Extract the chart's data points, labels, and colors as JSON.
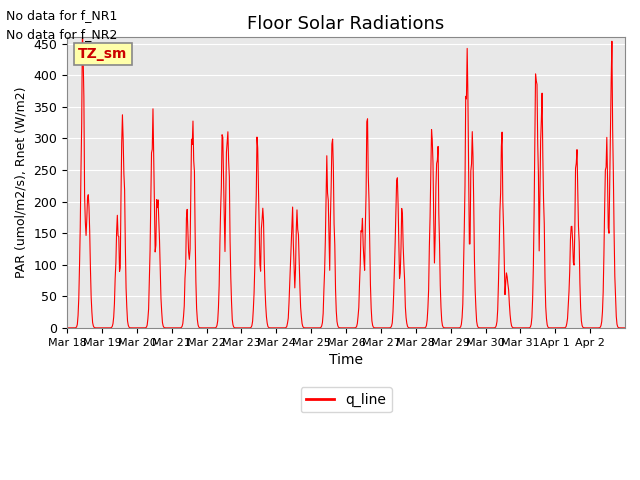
{
  "title": "Floor Solar Radiations",
  "xlabel": "Time",
  "ylabel": "PAR (umol/m2/s), Rnet (W/m2)",
  "ylim": [
    0,
    460
  ],
  "yticks": [
    0,
    50,
    100,
    150,
    200,
    250,
    300,
    350,
    400,
    450
  ],
  "xtick_positions": [
    0,
    1,
    2,
    3,
    4,
    5,
    6,
    7,
    8,
    9,
    10,
    11,
    12,
    13,
    14,
    15
  ],
  "xtick_labels": [
    "Mar 18",
    "Mar 19",
    "Mar 20",
    "Mar 21",
    "Mar 22",
    "Mar 23",
    "Mar 24",
    "Mar 25",
    "Mar 26",
    "Mar 27",
    "Mar 28",
    "Mar 29",
    "Mar 30",
    "Mar 31",
    "Apr 1",
    "Apr 2"
  ],
  "no_data_text1": "No data for f_NR1",
  "no_data_text2": "No data for f_NR2",
  "legend_label": "q_line",
  "legend_color": "#ff0000",
  "line_color": "#ff0000",
  "bg_color": "#e8e8e8",
  "box_color": "#ffffaa",
  "box_text": "TZ_sm",
  "box_text_color": "#cc0000",
  "grid_color": "#ffffff",
  "n_days": 16,
  "day_peaks": [
    430,
    235,
    175,
    320,
    315,
    225,
    175,
    345,
    290,
    355,
    270,
    175,
    175,
    170,
    240,
    290,
    170,
    300,
    220,
    175,
    295,
    290,
    405,
    275,
    280,
    85,
    415,
    365,
    160,
    290,
    275,
    425,
    410,
    275,
    405,
    260,
    385,
    370,
    260,
    430,
    395,
    260
  ]
}
